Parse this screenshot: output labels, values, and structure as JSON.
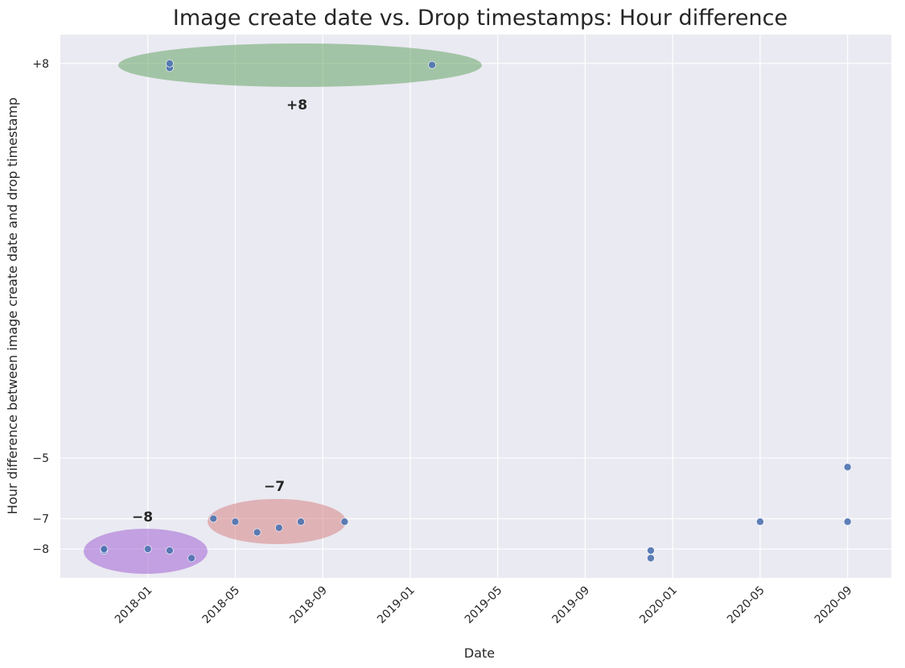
{
  "chart_data": {
    "type": "scatter",
    "title": "Image create date vs. Drop timestamps: Hour difference",
    "xlabel": "Date",
    "ylabel": "Hour difference between image create date and drop timestamp",
    "x": [
      "2017-11",
      "2017-11",
      "2018-01",
      "2018-02",
      "2018-03",
      "2018-04",
      "2018-05",
      "2018-06",
      "2018-07",
      "2018-08",
      "2018-10",
      "2018-02",
      "2018-02",
      "2019-02",
      "2019-12",
      "2019-12",
      "2020-05",
      "2020-09",
      "2020-09"
    ],
    "values": [
      -8.05,
      -8,
      -8,
      -8.05,
      -8.3,
      -7,
      -7.1,
      -7.45,
      -7.3,
      -7.1,
      -7.1,
      7.85,
      8,
      7.95,
      -8.05,
      -8.3,
      -7.1,
      -5.3,
      -7.1
    ],
    "color": "#4c72b0",
    "xlim": [
      "2017-09",
      "2020-11"
    ],
    "xticks": [
      "2018-01",
      "2018-05",
      "2018-09",
      "2019-01",
      "2019-05",
      "2019-09",
      "2020-01",
      "2020-05",
      "2020-09"
    ],
    "ylim": [
      -8.95,
      8.95
    ],
    "yticks": [
      {
        "value": 8,
        "label": "+8"
      },
      {
        "value": -5,
        "label": "−5"
      },
      {
        "value": -7,
        "label": "−7"
      },
      {
        "value": -8,
        "label": "−8"
      }
    ],
    "grid": true,
    "annotations": [
      "+8",
      "−7",
      "−8"
    ]
  }
}
